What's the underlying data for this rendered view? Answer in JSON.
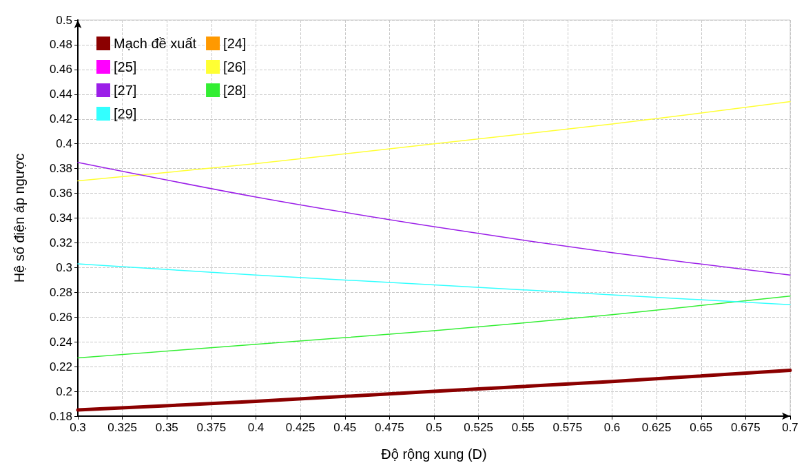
{
  "chart_data": {
    "type": "line",
    "xlabel": "Độ rộng xung (D)",
    "ylabel": "Hệ số điện áp ngược",
    "xlim": [
      0.3,
      0.7
    ],
    "xticks": [
      0.3,
      0.325,
      0.35,
      0.375,
      0.4,
      0.425,
      0.45,
      0.475,
      0.5,
      0.525,
      0.55,
      0.575,
      0.6,
      0.625,
      0.65,
      0.675,
      0.7
    ],
    "ylim": [
      0.18,
      0.5
    ],
    "yticks": [
      0.18,
      0.2,
      0.22,
      0.24,
      0.26,
      0.28,
      0.3,
      0.32,
      0.34,
      0.36,
      0.38,
      0.4,
      0.42,
      0.44,
      0.46,
      0.48,
      0.5
    ],
    "grid": true,
    "legend": "top left",
    "line_style": "solid",
    "marker": "none",
    "x": [
      0.3,
      0.4,
      0.5,
      0.6,
      0.7
    ],
    "series": [
      {
        "name": "Mạch đề xuất",
        "color": "#8b0000",
        "values": [
          0.185,
          0.192,
          0.2,
          0.208,
          0.217
        ]
      },
      {
        "name": "[24]",
        "color": "#ff9900",
        "values": [
          null,
          null,
          null,
          null,
          null
        ]
      },
      {
        "name": "[25]",
        "color": "#ff00ff",
        "values": [
          null,
          null,
          null,
          null,
          null
        ]
      },
      {
        "name": "[26]",
        "color": "#ffff33",
        "values": [
          0.37,
          0.384,
          0.4,
          0.416,
          0.434
        ]
      },
      {
        "name": "[27]",
        "color": "#9b1fe8",
        "values": [
          0.385,
          0.357,
          0.333,
          0.312,
          0.294
        ]
      },
      {
        "name": "[28]",
        "color": "#33ee33",
        "values": [
          0.227,
          0.238,
          0.249,
          0.262,
          0.277
        ]
      },
      {
        "name": "[29]",
        "color": "#33ffff",
        "values": [
          0.303,
          0.294,
          0.286,
          0.278,
          0.27
        ]
      }
    ]
  }
}
